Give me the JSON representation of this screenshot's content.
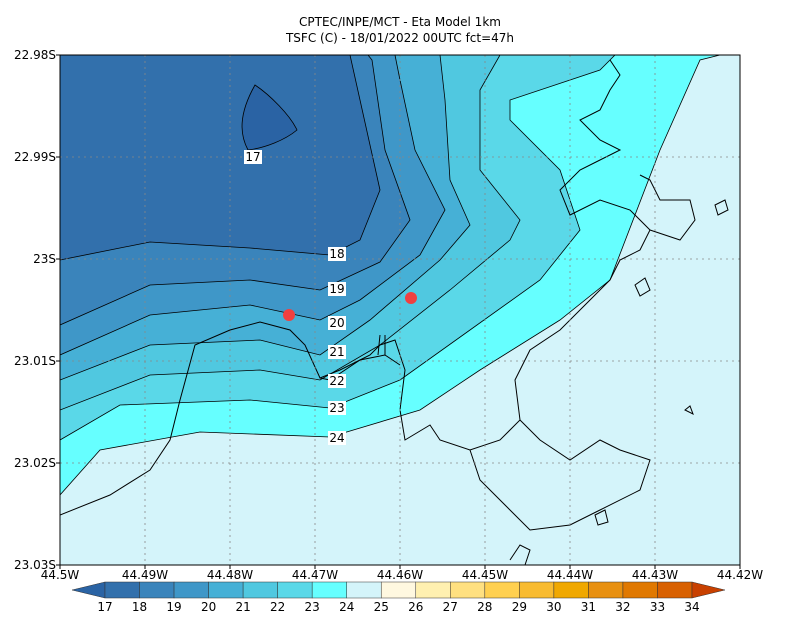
{
  "header": {
    "title": "CPTEC/INPE/MCT -  Eta Model 1km",
    "subtitle": "TSFC (C) - 18/01/2022 00UTC fct=47h"
  },
  "x_axis": {
    "labels": [
      "44.5W",
      "44.49W",
      "44.48W",
      "44.47W",
      "44.46W",
      "44.45W",
      "44.44W",
      "44.43W",
      "44.42W"
    ]
  },
  "y_axis": {
    "labels": [
      "22.98S",
      "22.99S",
      "23S",
      "23.01S",
      "23.02S",
      "23.03S"
    ]
  },
  "contours": [
    {
      "label": "17"
    },
    {
      "label": "18"
    },
    {
      "label": "19"
    },
    {
      "label": "20"
    },
    {
      "label": "21"
    },
    {
      "label": "22"
    },
    {
      "label": "23"
    },
    {
      "label": "24"
    }
  ],
  "colorbar": {
    "labels": [
      "17",
      "18",
      "19",
      "20",
      "21",
      "22",
      "23",
      "24",
      "25",
      "26",
      "27",
      "28",
      "29",
      "30",
      "31",
      "32",
      "33",
      "34"
    ],
    "colors": [
      "#2a63a4",
      "#3270ac",
      "#3a84bb",
      "#3f97c8",
      "#46b0d6",
      "#50c8e0",
      "#5ad8e8",
      "#66ffff",
      "#d4f4fa",
      "#fff8e0",
      "#fff0b0",
      "#ffe080",
      "#ffd050",
      "#f8bb30",
      "#f0a800",
      "#e89010",
      "#e07800",
      "#d86000",
      "#c84000"
    ]
  }
}
